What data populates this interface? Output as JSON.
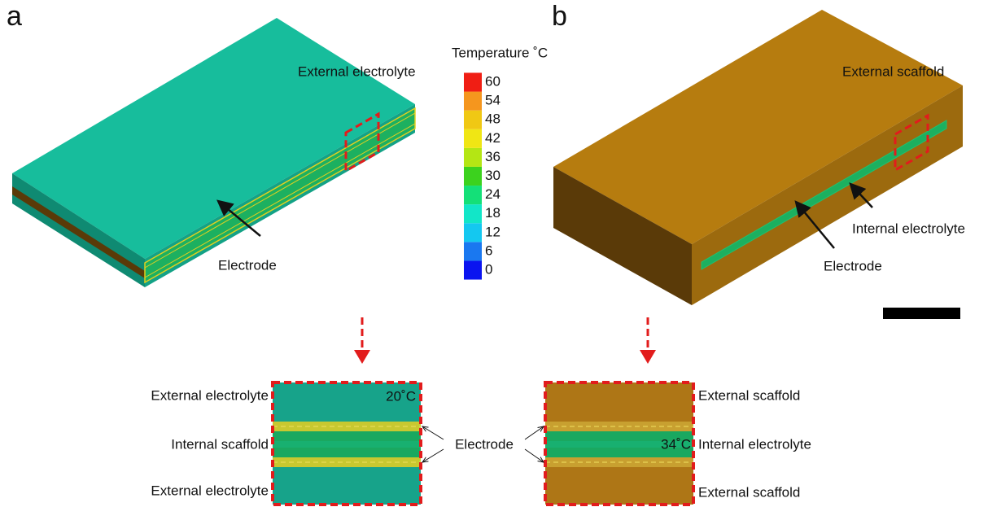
{
  "panel_a": {
    "label": "a",
    "top_label": "External electrolyte",
    "arrow_label": "Electrode",
    "zoom": {
      "temperature": "20˚C",
      "top": "External electrolyte",
      "middle": "Internal scaffold",
      "bottom": "External electrolyte"
    }
  },
  "panel_b": {
    "label": "b",
    "top_label": "External scaffold",
    "arrow_label_1": "Internal electrolyte",
    "arrow_label_2": "Electrode",
    "zoom": {
      "temperature": "34˚C",
      "top": "External scaffold",
      "middle": "Internal electrolyte",
      "bottom": "External scaffold"
    }
  },
  "zoom_center_label": "Electrode",
  "colorbar": {
    "title": "Temperature ˚C",
    "ticks": [
      0,
      6,
      12,
      18,
      24,
      30,
      36,
      42,
      48,
      54,
      60
    ],
    "colors": [
      "#0a14f0",
      "#1a78f0",
      "#14c8f0",
      "#12e6c8",
      "#14e078",
      "#3cd21e",
      "#b4e614",
      "#f0e614",
      "#f0c814",
      "#f5961e",
      "#f01e14"
    ]
  }
}
